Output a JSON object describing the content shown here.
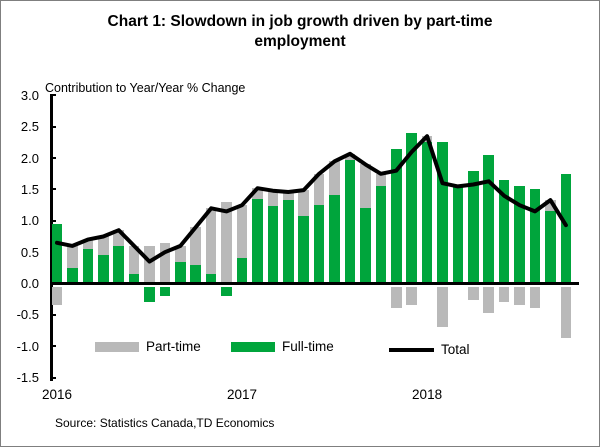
{
  "title": "Chart 1: Slowdown in job growth driven by part-time employment",
  "subtitle": "Contribution to Year/Year % Change",
  "source": "Source: Statistics Canada,TD Economics",
  "colors": {
    "part_time": "#b9b9b9",
    "full_time": "#00a53c",
    "total": "#000000"
  },
  "legend": {
    "items": [
      {
        "label": "Part-time",
        "swatch": "gray-bar"
      },
      {
        "label": "Full-time",
        "swatch": "green-bar"
      },
      {
        "label": "Total",
        "swatch": "black-line"
      }
    ]
  },
  "chart_data": {
    "type": "bar",
    "subtype": "stacked-bars-with-line-overlay",
    "title": "Chart 1: Slowdown in job growth driven by part-time employment",
    "ylabel": "Contribution to Year/Year % Change",
    "xlabel": "",
    "grid": false,
    "legend_position": "bottom-inside",
    "ylim": [
      -1.5,
      3.0
    ],
    "ytick_labels": [
      "3.0",
      "2.5",
      "2.0",
      "1.5",
      "1.0",
      "0.5",
      "0.0",
      "-0.5",
      "-1.0",
      "-1.5"
    ],
    "ytick_values": [
      3.0,
      2.5,
      2.0,
      1.5,
      1.0,
      0.5,
      0.0,
      -0.5,
      -1.0,
      -1.5
    ],
    "n_points": 34,
    "x_description": "monthly data, Jan 2016 through Oct 2018; only year ticks labeled",
    "x_ticks": [
      {
        "label": "2016",
        "index": 0
      },
      {
        "label": "2017",
        "index": 12
      },
      {
        "label": "2018",
        "index": 24
      }
    ],
    "series": [
      {
        "name": "Full-time",
        "role": "stacked-bar",
        "color": "#00a53c",
        "values": [
          0.95,
          0.25,
          0.55,
          0.45,
          0.6,
          0.15,
          -0.25,
          -0.15,
          0.35,
          0.3,
          0.15,
          -0.15,
          0.4,
          1.35,
          1.23,
          1.34,
          1.07,
          1.25,
          1.41,
          1.97,
          1.2,
          1.55,
          2.15,
          2.4,
          2.25,
          2.25,
          1.55,
          1.8,
          2.05,
          1.65,
          1.55,
          1.5,
          1.15,
          1.75
        ]
      },
      {
        "name": "Part-time",
        "role": "stacked-bar",
        "color": "#b9b9b9",
        "values": [
          -0.3,
          0.35,
          0.15,
          0.3,
          0.25,
          0.45,
          0.6,
          0.65,
          0.25,
          0.6,
          1.05,
          1.3,
          0.85,
          0.17,
          0.25,
          0.12,
          0.42,
          0.5,
          0.54,
          0.1,
          0.7,
          0.2,
          -0.35,
          -0.3,
          0.1,
          -0.65,
          0.0,
          -0.22,
          -0.42,
          -0.25,
          -0.3,
          -0.35,
          0.18,
          -0.82
        ]
      },
      {
        "name": "Total",
        "role": "line",
        "color": "#000000",
        "values": [
          0.65,
          0.6,
          0.7,
          0.75,
          0.85,
          0.6,
          0.35,
          0.5,
          0.6,
          0.9,
          1.2,
          1.15,
          1.25,
          1.52,
          1.48,
          1.46,
          1.49,
          1.75,
          1.95,
          2.07,
          1.9,
          1.75,
          1.8,
          2.1,
          2.35,
          1.6,
          1.55,
          1.58,
          1.63,
          1.4,
          1.25,
          1.15,
          1.33,
          0.93
        ]
      }
    ]
  }
}
